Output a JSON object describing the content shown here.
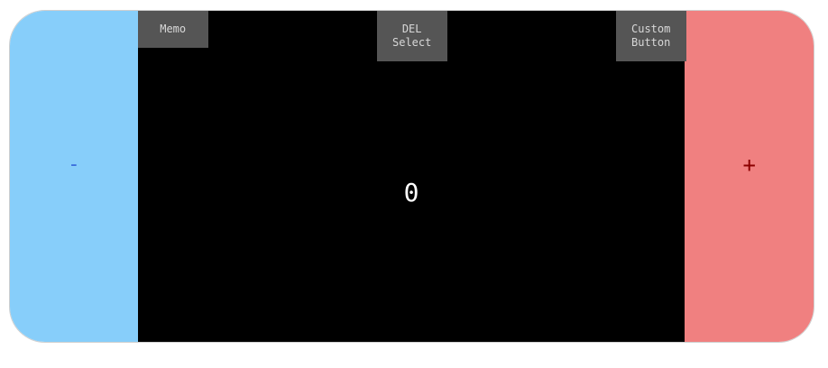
{
  "counter": {
    "value": "0",
    "decrement_label": "-",
    "increment_label": "+",
    "buttons": {
      "memo_label": "Memo",
      "del_label": "DEL\nSelect",
      "custom_label": "Custom\nButton"
    }
  },
  "colors": {
    "decrement_bg": "#87cefa",
    "increment_bg": "#f08080",
    "display_bg": "#000000",
    "button_bg": "#555555"
  }
}
